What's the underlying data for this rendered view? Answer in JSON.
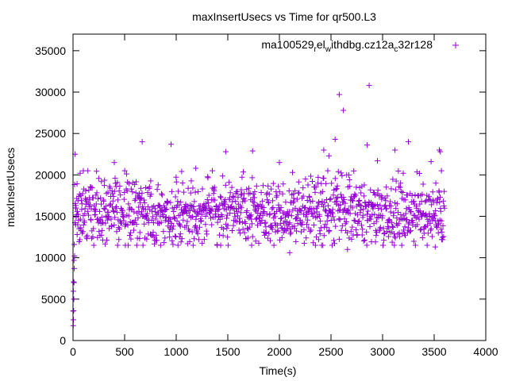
{
  "chart_data": {
    "type": "scatter",
    "title": "maxInsertUsecs vs Time for qr500.L3",
    "xlabel": "Time(s)",
    "ylabel": "maxInsertUsecs",
    "xlim": [
      0,
      4000
    ],
    "ylim": [
      0,
      37000
    ],
    "x_ticks": [
      0,
      500,
      1000,
      1500,
      2000,
      2500,
      3000,
      3500,
      4000
    ],
    "y_ticks": [
      0,
      5000,
      10000,
      15000,
      20000,
      25000,
      30000,
      35000
    ],
    "grid": false,
    "legend_position": "top-right",
    "series": [
      {
        "name_parts": [
          "ma100529",
          "r",
          "el",
          "w",
          "ithdbg.cz12a",
          "c",
          "32r128"
        ],
        "name_display": "ma100529_rel_withdbg.cz12a_c32r128",
        "color": "#9400d3",
        "marker": "plus",
        "start": 0,
        "end": 3600,
        "x": [
          2,
          4,
          6,
          8,
          10,
          12,
          15,
          20,
          25,
          30,
          40,
          60,
          75,
          100,
          130,
          175,
          275,
          400,
          550,
          645,
          670,
          825,
          950,
          1040,
          1190,
          1200,
          1285,
          1480,
          1630,
          1740,
          1770,
          2000,
          2100,
          2380,
          2430,
          2480,
          2540,
          2580,
          2620,
          2660,
          2850,
          2870,
          2950,
          3120,
          3200,
          3250,
          3470,
          3510,
          3540,
          3550,
          3560,
          3570
        ],
        "y": [
          1800,
          2500,
          3600,
          5000,
          7000,
          8700,
          10200,
          22500,
          14000,
          16000,
          12800,
          13500,
          17500,
          20500,
          12500,
          18500,
          19200,
          21500,
          12700,
          12300,
          24000,
          18800,
          23700,
          13800,
          20800,
          13500,
          15000,
          22800,
          18200,
          22900,
          12000,
          21500,
          10600,
          12200,
          23000,
          22300,
          24300,
          29700,
          27800,
          11000,
          23600,
          30800,
          21700,
          23000,
          20200,
          24000,
          21600,
          11300,
          13000,
          23000,
          22800,
          20500
        ],
        "band_mean": 15500,
        "band_spread": 2600,
        "band_min": 11500,
        "band_max": 20500
      }
    ]
  }
}
